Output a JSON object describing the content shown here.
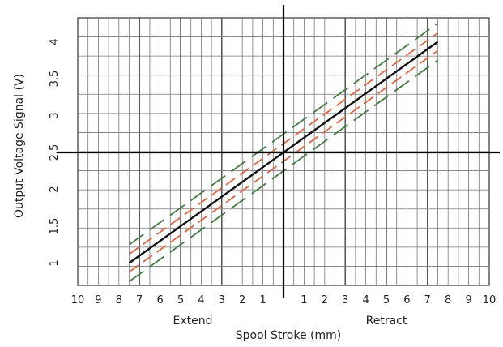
{
  "chart_data": {
    "type": "line",
    "xlabel": "Spool Stroke (mm)",
    "ylabel": "Output Voltage Signal (V)",
    "x_left_label": "Extend",
    "x_right_label": "Retract",
    "x_ticks": [
      "10",
      "9",
      "8",
      "7",
      "6",
      "5",
      "4",
      "3",
      "2",
      "1",
      "",
      "1",
      "2",
      "3",
      "4",
      "5",
      "6",
      "7",
      "8",
      "9",
      "10"
    ],
    "y_ticks": [
      "1",
      "1.5",
      "2",
      "2.5",
      "3",
      "3.5",
      "4"
    ],
    "xlim": [
      -10,
      10
    ],
    "ylim": [
      0.8,
      4.3
    ],
    "grid": true,
    "series": [
      {
        "style": "solid",
        "color": "#111111",
        "x": [
          -7.5,
          7.5
        ],
        "y": [
          1.0,
          4.0
        ]
      },
      {
        "style": "dashed",
        "color": "#e8623a",
        "x": [
          -7.5,
          7.5
        ],
        "y": [
          1.12,
          4.12
        ]
      },
      {
        "style": "dashed",
        "color": "#e8623a",
        "x": [
          -7.5,
          7.5
        ],
        "y": [
          0.88,
          3.88
        ]
      },
      {
        "style": "dashed",
        "color": "#3f7d3f",
        "x": [
          -7.5,
          7.5
        ],
        "y": [
          1.25,
          4.25
        ]
      },
      {
        "style": "dashed",
        "color": "#3f7d3f",
        "x": [
          -7.5,
          7.5
        ],
        "y": [
          0.75,
          3.75
        ]
      }
    ]
  }
}
